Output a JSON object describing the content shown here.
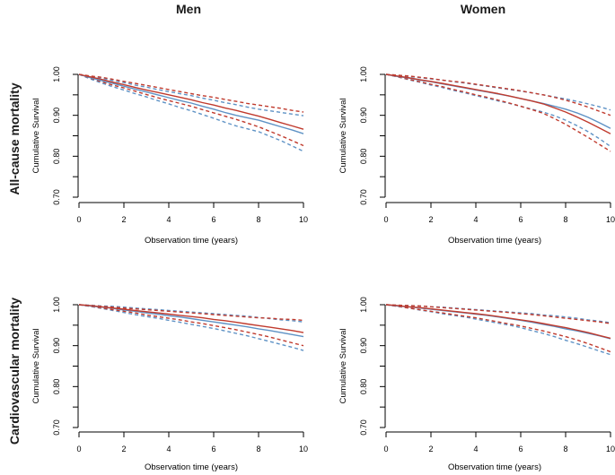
{
  "figure": {
    "col_titles": [
      "Men",
      "Women"
    ],
    "row_titles": [
      "All-cause mortality",
      "Cardiovascular mortality"
    ]
  },
  "colors": {
    "red": "#c03a2d",
    "blue": "#5e92c5",
    "axis": "#000000"
  },
  "chart_data": {
    "type": "line",
    "x_years": [
      0,
      0.5,
      1,
      1.5,
      2,
      2.5,
      3,
      3.5,
      4,
      4.5,
      5,
      5.5,
      6,
      6.5,
      7,
      7.5,
      8,
      8.5,
      9,
      9.5,
      10
    ],
    "xlabel": "Observation time (years)",
    "ylabel": "Cumulative Survival",
    "xlim": [
      0,
      10
    ],
    "ylim": [
      0.7,
      1.0
    ],
    "xtick_labels": [
      "0",
      "2",
      "4",
      "6",
      "8",
      "10"
    ],
    "xticks": [
      0,
      2,
      4,
      6,
      8,
      10
    ],
    "yticks": [
      1.0,
      0.95,
      0.9,
      0.85,
      0.8,
      0.75,
      0.7
    ],
    "ytick_labels": [
      "1.00",
      "",
      "0.90",
      "",
      "0.80",
      "",
      "0.70"
    ],
    "grid": false,
    "legend": "none",
    "panels": [
      {
        "id": "men-all-cause",
        "row": 0,
        "col": 0,
        "row_label": "All-cause mortality",
        "col_label": "Men",
        "series": [
          {
            "name": "blue-ci-lower",
            "color": "blue",
            "dash": true,
            "values": [
              1.0,
              0.989,
              0.979,
              0.97,
              0.962,
              0.953,
              0.945,
              0.936,
              0.928,
              0.919,
              0.911,
              0.902,
              0.893,
              0.883,
              0.874,
              0.867,
              0.86,
              0.849,
              0.838,
              0.825,
              0.812
            ]
          },
          {
            "name": "blue-ci-upper",
            "color": "blue",
            "dash": true,
            "values": [
              1.0,
              0.995,
              0.991,
              0.985,
              0.98,
              0.974,
              0.969,
              0.963,
              0.958,
              0.953,
              0.948,
              0.942,
              0.937,
              0.931,
              0.926,
              0.92,
              0.915,
              0.911,
              0.907,
              0.903,
              0.899
            ]
          },
          {
            "name": "red-ci-lower",
            "color": "red",
            "dash": true,
            "values": [
              1.0,
              0.991,
              0.982,
              0.974,
              0.967,
              0.959,
              0.951,
              0.943,
              0.936,
              0.929,
              0.922,
              0.914,
              0.906,
              0.898,
              0.89,
              0.881,
              0.872,
              0.861,
              0.85,
              0.838,
              0.826
            ]
          },
          {
            "name": "red-ci-upper",
            "color": "red",
            "dash": true,
            "values": [
              1.0,
              0.996,
              0.993,
              0.988,
              0.983,
              0.978,
              0.973,
              0.968,
              0.963,
              0.958,
              0.953,
              0.948,
              0.944,
              0.939,
              0.934,
              0.929,
              0.925,
              0.921,
              0.917,
              0.912,
              0.908
            ]
          },
          {
            "name": "blue-solid",
            "color": "blue",
            "dash": false,
            "values": [
              1.0,
              0.992,
              0.985,
              0.978,
              0.971,
              0.964,
              0.957,
              0.95,
              0.943,
              0.936,
              0.93,
              0.922,
              0.915,
              0.907,
              0.9,
              0.894,
              0.888,
              0.88,
              0.872,
              0.864,
              0.855
            ]
          },
          {
            "name": "red-solid",
            "color": "red",
            "dash": false,
            "values": [
              1.0,
              0.994,
              0.988,
              0.981,
              0.975,
              0.968,
              0.962,
              0.956,
              0.95,
              0.944,
              0.938,
              0.931,
              0.925,
              0.918,
              0.912,
              0.905,
              0.898,
              0.89,
              0.882,
              0.874,
              0.866
            ]
          }
        ]
      },
      {
        "id": "women-all-cause",
        "row": 0,
        "col": 1,
        "row_label": "All-cause mortality",
        "col_label": "Women",
        "series": [
          {
            "name": "blue-ci-lower",
            "color": "blue",
            "dash": true,
            "values": [
              1.0,
              0.994,
              0.987,
              0.981,
              0.974,
              0.968,
              0.961,
              0.955,
              0.948,
              0.942,
              0.935,
              0.929,
              0.922,
              0.915,
              0.908,
              0.899,
              0.888,
              0.875,
              0.86,
              0.843,
              0.824
            ]
          },
          {
            "name": "blue-ci-upper",
            "color": "blue",
            "dash": true,
            "values": [
              1.0,
              0.998,
              0.995,
              0.992,
              0.989,
              0.986,
              0.982,
              0.979,
              0.975,
              0.971,
              0.967,
              0.963,
              0.959,
              0.955,
              0.95,
              0.945,
              0.94,
              0.934,
              0.928,
              0.921,
              0.913
            ]
          },
          {
            "name": "red-ci-lower",
            "color": "red",
            "dash": true,
            "values": [
              1.0,
              0.994,
              0.988,
              0.982,
              0.976,
              0.97,
              0.963,
              0.957,
              0.95,
              0.944,
              0.937,
              0.93,
              0.922,
              0.914,
              0.905,
              0.892,
              0.878,
              0.862,
              0.846,
              0.829,
              0.812
            ]
          },
          {
            "name": "red-ci-upper",
            "color": "red",
            "dash": true,
            "values": [
              1.0,
              0.998,
              0.996,
              0.993,
              0.99,
              0.986,
              0.983,
              0.98,
              0.976,
              0.972,
              0.968,
              0.964,
              0.96,
              0.955,
              0.95,
              0.944,
              0.937,
              0.929,
              0.92,
              0.91,
              0.9
            ]
          },
          {
            "name": "blue-solid",
            "color": "blue",
            "dash": false,
            "values": [
              1.0,
              0.995,
              0.991,
              0.986,
              0.982,
              0.977,
              0.972,
              0.967,
              0.962,
              0.957,
              0.952,
              0.947,
              0.941,
              0.935,
              0.929,
              0.922,
              0.915,
              0.906,
              0.895,
              0.882,
              0.868
            ]
          },
          {
            "name": "red-solid",
            "color": "red",
            "dash": false,
            "values": [
              1.0,
              0.996,
              0.992,
              0.987,
              0.983,
              0.978,
              0.973,
              0.968,
              0.963,
              0.958,
              0.953,
              0.947,
              0.941,
              0.935,
              0.928,
              0.918,
              0.908,
              0.896,
              0.883,
              0.869,
              0.855
            ]
          }
        ]
      },
      {
        "id": "men-cardiovascular",
        "row": 1,
        "col": 0,
        "row_label": "Cardiovascular mortality",
        "col_label": "Men",
        "series": [
          {
            "name": "blue-ci-lower",
            "color": "blue",
            "dash": true,
            "values": [
              1.0,
              0.996,
              0.991,
              0.986,
              0.981,
              0.976,
              0.971,
              0.967,
              0.962,
              0.957,
              0.952,
              0.947,
              0.942,
              0.936,
              0.93,
              0.924,
              0.917,
              0.91,
              0.903,
              0.896,
              0.888
            ]
          },
          {
            "name": "blue-ci-upper",
            "color": "blue",
            "dash": true,
            "values": [
              1.0,
              0.999,
              0.997,
              0.996,
              0.994,
              0.992,
              0.99,
              0.988,
              0.986,
              0.984,
              0.982,
              0.98,
              0.978,
              0.976,
              0.974,
              0.972,
              0.969,
              0.966,
              0.963,
              0.961,
              0.958
            ]
          },
          {
            "name": "red-ci-lower",
            "color": "red",
            "dash": true,
            "values": [
              1.0,
              0.996,
              0.992,
              0.988,
              0.984,
              0.98,
              0.975,
              0.971,
              0.967,
              0.963,
              0.958,
              0.954,
              0.949,
              0.944,
              0.939,
              0.933,
              0.927,
              0.921,
              0.914,
              0.907,
              0.9
            ]
          },
          {
            "name": "red-ci-upper",
            "color": "red",
            "dash": true,
            "values": [
              1.0,
              0.998,
              0.996,
              0.994,
              0.992,
              0.99,
              0.988,
              0.986,
              0.984,
              0.982,
              0.98,
              0.978,
              0.976,
              0.974,
              0.972,
              0.97,
              0.968,
              0.967,
              0.965,
              0.964,
              0.962
            ]
          },
          {
            "name": "blue-solid",
            "color": "blue",
            "dash": false,
            "values": [
              1.0,
              0.997,
              0.994,
              0.991,
              0.987,
              0.984,
              0.98,
              0.977,
              0.973,
              0.97,
              0.966,
              0.962,
              0.958,
              0.954,
              0.95,
              0.946,
              0.941,
              0.937,
              0.932,
              0.927,
              0.922
            ]
          },
          {
            "name": "red-solid",
            "color": "red",
            "dash": false,
            "values": [
              1.0,
              0.998,
              0.995,
              0.992,
              0.989,
              0.986,
              0.983,
              0.98,
              0.977,
              0.974,
              0.971,
              0.968,
              0.964,
              0.961,
              0.957,
              0.953,
              0.949,
              0.945,
              0.941,
              0.937,
              0.932
            ]
          }
        ]
      },
      {
        "id": "women-cardiovascular",
        "row": 1,
        "col": 1,
        "row_label": "Cardiovascular mortality",
        "col_label": "Women",
        "series": [
          {
            "name": "blue-ci-lower",
            "color": "blue",
            "dash": true,
            "values": [
              1.0,
              0.996,
              0.992,
              0.987,
              0.983,
              0.978,
              0.974,
              0.97,
              0.965,
              0.96,
              0.955,
              0.95,
              0.944,
              0.937,
              0.93,
              0.922,
              0.913,
              0.905,
              0.896,
              0.887,
              0.878
            ]
          },
          {
            "name": "blue-ci-upper",
            "color": "blue",
            "dash": true,
            "values": [
              1.0,
              0.999,
              0.998,
              0.997,
              0.995,
              0.994,
              0.992,
              0.99,
              0.988,
              0.986,
              0.984,
              0.982,
              0.98,
              0.978,
              0.975,
              0.973,
              0.97,
              0.967,
              0.963,
              0.96,
              0.956
            ]
          },
          {
            "name": "red-ci-lower",
            "color": "red",
            "dash": true,
            "values": [
              1.0,
              0.996,
              0.992,
              0.988,
              0.984,
              0.98,
              0.976,
              0.972,
              0.968,
              0.963,
              0.958,
              0.953,
              0.948,
              0.942,
              0.936,
              0.929,
              0.922,
              0.914,
              0.905,
              0.895,
              0.885
            ]
          },
          {
            "name": "red-ci-upper",
            "color": "red",
            "dash": true,
            "values": [
              1.0,
              0.999,
              0.998,
              0.997,
              0.995,
              0.993,
              0.991,
              0.989,
              0.987,
              0.985,
              0.983,
              0.981,
              0.978,
              0.976,
              0.973,
              0.97,
              0.967,
              0.964,
              0.961,
              0.958,
              0.954
            ]
          },
          {
            "name": "blue-solid",
            "color": "blue",
            "dash": false,
            "values": [
              1.0,
              0.997,
              0.995,
              0.992,
              0.989,
              0.986,
              0.983,
              0.98,
              0.977,
              0.974,
              0.97,
              0.966,
              0.962,
              0.957,
              0.952,
              0.947,
              0.941,
              0.936,
              0.93,
              0.924,
              0.917
            ]
          },
          {
            "name": "red-solid",
            "color": "red",
            "dash": false,
            "values": [
              1.0,
              0.998,
              0.995,
              0.993,
              0.99,
              0.987,
              0.984,
              0.981,
              0.978,
              0.975,
              0.971,
              0.967,
              0.963,
              0.959,
              0.954,
              0.949,
              0.944,
              0.938,
              0.932,
              0.925,
              0.918
            ]
          }
        ]
      }
    ]
  }
}
